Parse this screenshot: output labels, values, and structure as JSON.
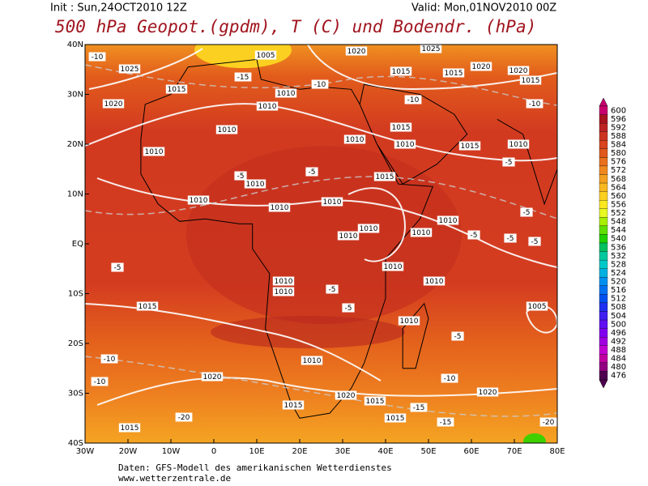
{
  "header": {
    "init": "Init : Sun,24OCT2010 12Z",
    "valid": "Valid: Mon,01NOV2010 00Z",
    "title": "500 hPa Geopot.(gpdm), T (C) und Bodendr. (hPa)"
  },
  "map": {
    "lat_labels": [
      "40N",
      "30N",
      "20N",
      "10N",
      "EQ",
      "10S",
      "20S",
      "30S",
      "40S"
    ],
    "lon_labels": [
      "30W",
      "20W",
      "10W",
      "0",
      "10E",
      "20E",
      "30E",
      "40E",
      "50E",
      "60E",
      "70E",
      "80E"
    ],
    "contour_labels": [
      "-10",
      "1025",
      "1020",
      "1005",
      "-15",
      "1015",
      "1010",
      "1010",
      "1010",
      "1010",
      "-10",
      "1020",
      "1025",
      "1015",
      "1015",
      "1020",
      "1020",
      "1015",
      "-10",
      "-10",
      "1015",
      "1010",
      "1010",
      "1015",
      "1010",
      "-5",
      "1010",
      "1015",
      "-5",
      "-5",
      "1010",
      "1010",
      "1010",
      "1010",
      "-5",
      "1010",
      "1010",
      "1010",
      "-5",
      "-5",
      "-5",
      "1010",
      "1010",
      "-5",
      "1010",
      "1010",
      "-5",
      "1015",
      "1005",
      "1010",
      "-10",
      "-10",
      "1010",
      "1020",
      "-10",
      "1015",
      "1020",
      "1015",
      "1020",
      "-15",
      "-20",
      "1015",
      "1015",
      "-15",
      "-20",
      "-5",
      "-5"
    ]
  },
  "colorbar": {
    "levels": [
      600,
      596,
      592,
      588,
      584,
      580,
      576,
      572,
      568,
      564,
      560,
      556,
      552,
      548,
      544,
      540,
      536,
      532,
      528,
      524,
      520,
      516,
      512,
      508,
      504,
      500,
      496,
      492,
      488,
      484,
      480,
      476
    ],
    "colors": [
      "#c8006e",
      "#a8141e",
      "#bc2424",
      "#cc3420",
      "#d8441e",
      "#e0581c",
      "#e8701e",
      "#f08820",
      "#f4a020",
      "#f8b820",
      "#fcd020",
      "#fce820",
      "#e8f820",
      "#a8f000",
      "#60e000",
      "#20d000",
      "#00c060",
      "#00c8a0",
      "#00c8c8",
      "#00b0e0",
      "#0090f0",
      "#0070f0",
      "#0050f0",
      "#2030f0",
      "#4020f0",
      "#6010f0",
      "#8000f0",
      "#a000e0",
      "#c000d0",
      "#c000a0",
      "#900080",
      "#500050"
    ]
  },
  "footer": {
    "source": "Daten: GFS-Modell des amerikanischen Wetterdienstes",
    "url": "www.wetterzentrale.de"
  }
}
